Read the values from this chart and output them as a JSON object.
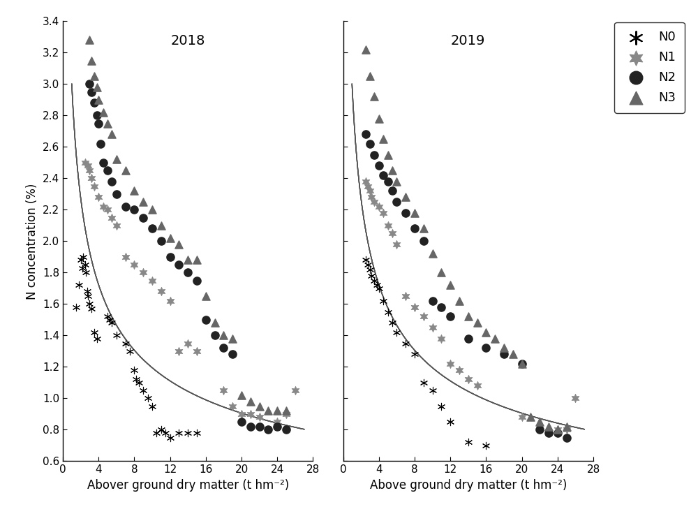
{
  "title_2018": "2018",
  "title_2019": "2019",
  "xlabel_left": "Abover ground dry matter (t hm⁻²)",
  "xlabel_right": "Above ground dry matter (t hm⁻²)",
  "ylabel": "N concentration (%)",
  "xlim": [
    0,
    28
  ],
  "ylim": [
    0.6,
    3.4
  ],
  "xticks": [
    0,
    4,
    8,
    12,
    16,
    20,
    24,
    28
  ],
  "yticks": [
    0.6,
    0.8,
    1.0,
    1.2,
    1.4,
    1.6,
    1.8,
    2.0,
    2.2,
    2.4,
    2.6,
    2.8,
    3.0,
    3.2,
    3.4
  ],
  "N0_2018_x": [
    1.5,
    1.8,
    2.0,
    2.2,
    2.3,
    2.5,
    2.6,
    2.7,
    2.8,
    3.0,
    3.2,
    3.5,
    3.8,
    5.0,
    5.2,
    5.5,
    6.0,
    7.0,
    7.5,
    8.0,
    8.2,
    8.5,
    9.0,
    9.5,
    10.0,
    10.5,
    11.0,
    11.5,
    12.0,
    13.0,
    14.0,
    15.0
  ],
  "N0_2018_y": [
    1.58,
    1.72,
    1.88,
    1.83,
    1.9,
    1.85,
    1.8,
    1.68,
    1.65,
    1.6,
    1.57,
    1.42,
    1.38,
    1.52,
    1.5,
    1.48,
    1.4,
    1.35,
    1.3,
    1.18,
    1.12,
    1.1,
    1.05,
    1.0,
    0.95,
    0.78,
    0.8,
    0.78,
    0.75,
    0.78,
    0.78,
    0.78
  ],
  "N1_2018_x": [
    2.5,
    2.8,
    3.0,
    3.2,
    3.5,
    4.0,
    4.5,
    5.0,
    5.5,
    6.0,
    7.0,
    8.0,
    9.0,
    10.0,
    11.0,
    12.0,
    13.0,
    14.0,
    15.0,
    18.0,
    19.0,
    20.0,
    21.0,
    22.0,
    24.0,
    25.0,
    26.0
  ],
  "N1_2018_y": [
    2.5,
    2.48,
    2.45,
    2.4,
    2.35,
    2.28,
    2.22,
    2.2,
    2.15,
    2.1,
    1.9,
    1.85,
    1.8,
    1.75,
    1.68,
    1.62,
    1.3,
    1.35,
    1.3,
    1.05,
    0.95,
    0.9,
    0.9,
    0.88,
    0.85,
    0.9,
    1.05
  ],
  "N2_2018_x": [
    3.0,
    3.2,
    3.5,
    3.8,
    4.0,
    4.2,
    4.5,
    5.0,
    5.5,
    6.0,
    7.0,
    8.0,
    9.0,
    10.0,
    11.0,
    12.0,
    13.0,
    14.0,
    15.0,
    16.0,
    17.0,
    18.0,
    19.0,
    20.0,
    21.0,
    22.0,
    23.0,
    24.0,
    25.0
  ],
  "N2_2018_y": [
    3.0,
    2.95,
    2.88,
    2.8,
    2.75,
    2.62,
    2.5,
    2.45,
    2.38,
    2.3,
    2.22,
    2.2,
    2.15,
    2.08,
    2.0,
    1.9,
    1.85,
    1.8,
    1.75,
    1.5,
    1.4,
    1.32,
    1.28,
    0.85,
    0.82,
    0.82,
    0.8,
    0.82,
    0.8
  ],
  "N3_2018_x": [
    3.0,
    3.2,
    3.5,
    3.8,
    4.0,
    4.5,
    5.0,
    5.5,
    6.0,
    7.0,
    8.0,
    9.0,
    10.0,
    11.0,
    12.0,
    13.0,
    14.0,
    15.0,
    16.0,
    17.0,
    18.0,
    19.0,
    20.0,
    21.0,
    22.0,
    23.0,
    24.0,
    25.0
  ],
  "N3_2018_y": [
    3.28,
    3.15,
    3.05,
    2.98,
    2.9,
    2.82,
    2.75,
    2.68,
    2.52,
    2.45,
    2.32,
    2.25,
    2.2,
    2.1,
    2.02,
    1.98,
    1.88,
    1.88,
    1.65,
    1.48,
    1.4,
    1.38,
    1.02,
    0.98,
    0.95,
    0.92,
    0.92,
    0.92
  ],
  "N0_2019_x": [
    2.5,
    2.8,
    3.0,
    3.2,
    3.5,
    3.8,
    4.0,
    4.5,
    5.0,
    5.5,
    6.0,
    7.0,
    8.0,
    9.0,
    10.0,
    11.0,
    12.0,
    14.0,
    16.0
  ],
  "N0_2019_y": [
    1.88,
    1.85,
    1.82,
    1.78,
    1.75,
    1.72,
    1.7,
    1.62,
    1.55,
    1.48,
    1.42,
    1.35,
    1.28,
    1.1,
    1.05,
    0.95,
    0.85,
    0.72,
    0.7
  ],
  "N1_2019_x": [
    2.5,
    2.8,
    3.0,
    3.2,
    3.5,
    4.0,
    4.5,
    5.0,
    5.5,
    6.0,
    7.0,
    8.0,
    9.0,
    10.0,
    11.0,
    12.0,
    13.0,
    14.0,
    15.0,
    20.0,
    22.0,
    24.0,
    25.0,
    26.0
  ],
  "N1_2019_y": [
    2.38,
    2.35,
    2.32,
    2.28,
    2.25,
    2.22,
    2.18,
    2.1,
    2.05,
    1.98,
    1.65,
    1.58,
    1.52,
    1.45,
    1.38,
    1.22,
    1.18,
    1.12,
    1.08,
    0.88,
    0.82,
    0.8,
    0.8,
    1.0
  ],
  "N2_2019_x": [
    2.5,
    3.0,
    3.5,
    4.0,
    4.5,
    5.0,
    5.5,
    6.0,
    7.0,
    8.0,
    9.0,
    10.0,
    11.0,
    12.0,
    14.0,
    16.0,
    18.0,
    20.0,
    22.0,
    23.0,
    24.0,
    25.0
  ],
  "N2_2019_y": [
    2.68,
    2.62,
    2.55,
    2.48,
    2.42,
    2.38,
    2.32,
    2.25,
    2.18,
    2.08,
    2.0,
    1.62,
    1.58,
    1.52,
    1.38,
    1.32,
    1.28,
    1.22,
    0.8,
    0.78,
    0.78,
    0.75
  ],
  "N3_2019_x": [
    2.5,
    3.0,
    3.5,
    4.0,
    4.5,
    5.0,
    5.5,
    6.0,
    7.0,
    8.0,
    9.0,
    10.0,
    11.0,
    12.0,
    13.0,
    14.0,
    15.0,
    16.0,
    17.0,
    18.0,
    19.0,
    20.0,
    21.0,
    22.0,
    23.0,
    24.0,
    25.0
  ],
  "N3_2019_y": [
    3.22,
    3.05,
    2.92,
    2.78,
    2.65,
    2.55,
    2.45,
    2.38,
    2.28,
    2.18,
    2.08,
    1.92,
    1.8,
    1.72,
    1.62,
    1.52,
    1.48,
    1.42,
    1.38,
    1.32,
    1.28,
    1.22,
    0.88,
    0.85,
    0.82,
    0.8,
    0.82
  ],
  "N0_color": "#000000",
  "N1_color": "#888888",
  "N2_color": "#222222",
  "N3_color": "#666666",
  "curve_color": "#555555",
  "curve_lw": 1.0,
  "bg_color": "#ffffff",
  "tick_fontsize": 11,
  "label_fontsize": 12,
  "title_fontsize": 14
}
